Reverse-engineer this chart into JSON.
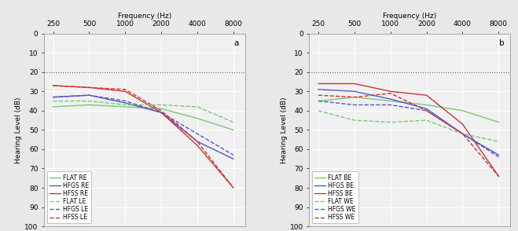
{
  "freqs": [
    250,
    500,
    1000,
    2000,
    4000,
    8000
  ],
  "xlabel": "Frequency (Hz)",
  "ylabel": "Hearing Level (dB)",
  "ylim": [
    100,
    0
  ],
  "yticks": [
    0,
    10,
    20,
    30,
    40,
    50,
    60,
    70,
    80,
    90,
    100
  ],
  "hline_y": 20,
  "panel_a_label": "a",
  "panel_b_label": "b",
  "panel_a": {
    "FLAT_RE": [
      38,
      37,
      38,
      39,
      44,
      50
    ],
    "HFGS_RE": [
      33,
      32,
      36,
      41,
      56,
      65
    ],
    "HFSS_RE": [
      27,
      28,
      30,
      41,
      58,
      80
    ],
    "FLAT_LE": [
      35,
      35,
      37,
      37,
      38,
      46
    ],
    "HFGS_LE": [
      33,
      32,
      35,
      41,
      52,
      63
    ],
    "HFSS_LE": [
      27,
      28,
      29,
      40,
      56,
      80
    ]
  },
  "panel_b": {
    "FLAT_BE": [
      35,
      33,
      35,
      37,
      40,
      46
    ],
    "HFGS_BE": [
      29,
      30,
      34,
      39,
      52,
      63
    ],
    "HFSS_BE": [
      26,
      26,
      30,
      32,
      47,
      74
    ],
    "FLAT_WE": [
      40,
      45,
      46,
      45,
      52,
      56
    ],
    "HFGS_WE": [
      35,
      37,
      37,
      40,
      52,
      64
    ],
    "HFSS_WE": [
      32,
      33,
      31,
      40,
      52,
      74
    ]
  },
  "colors": {
    "FLAT": "#76c976",
    "HFGS": "#5555cc",
    "HFSS": "#cc3333"
  },
  "legend_a": [
    {
      "label": "FLAT RE",
      "color": "#76c976",
      "ls": "-"
    },
    {
      "label": "HFGS RE",
      "color": "#5555cc",
      "ls": "-"
    },
    {
      "label": "HFSS RE",
      "color": "#cc3333",
      "ls": "-"
    },
    {
      "label": "FLAT LE",
      "color": "#76c976",
      "ls": "--"
    },
    {
      "label": "HFGS LE",
      "color": "#5555cc",
      "ls": "--"
    },
    {
      "label": "HFSS LE",
      "color": "#cc3333",
      "ls": "--"
    }
  ],
  "legend_b": [
    {
      "label": "FLAT BE",
      "color": "#76c976",
      "ls": "-"
    },
    {
      "label": "HFGS BE",
      "color": "#5555cc",
      "ls": "-"
    },
    {
      "label": "HFSS BE",
      "color": "#cc3333",
      "ls": "-"
    },
    {
      "label": "FLAT WE",
      "color": "#76c976",
      "ls": "--"
    },
    {
      "label": "HFGS WE",
      "color": "#5555cc",
      "ls": "--"
    },
    {
      "label": "HFSS WE",
      "color": "#cc3333",
      "ls": "--"
    }
  ],
  "bg_color": "#f0f0f0",
  "grid_color": "#ffffff",
  "linewidth": 1.0,
  "fig_bg": "#e8e8e8"
}
